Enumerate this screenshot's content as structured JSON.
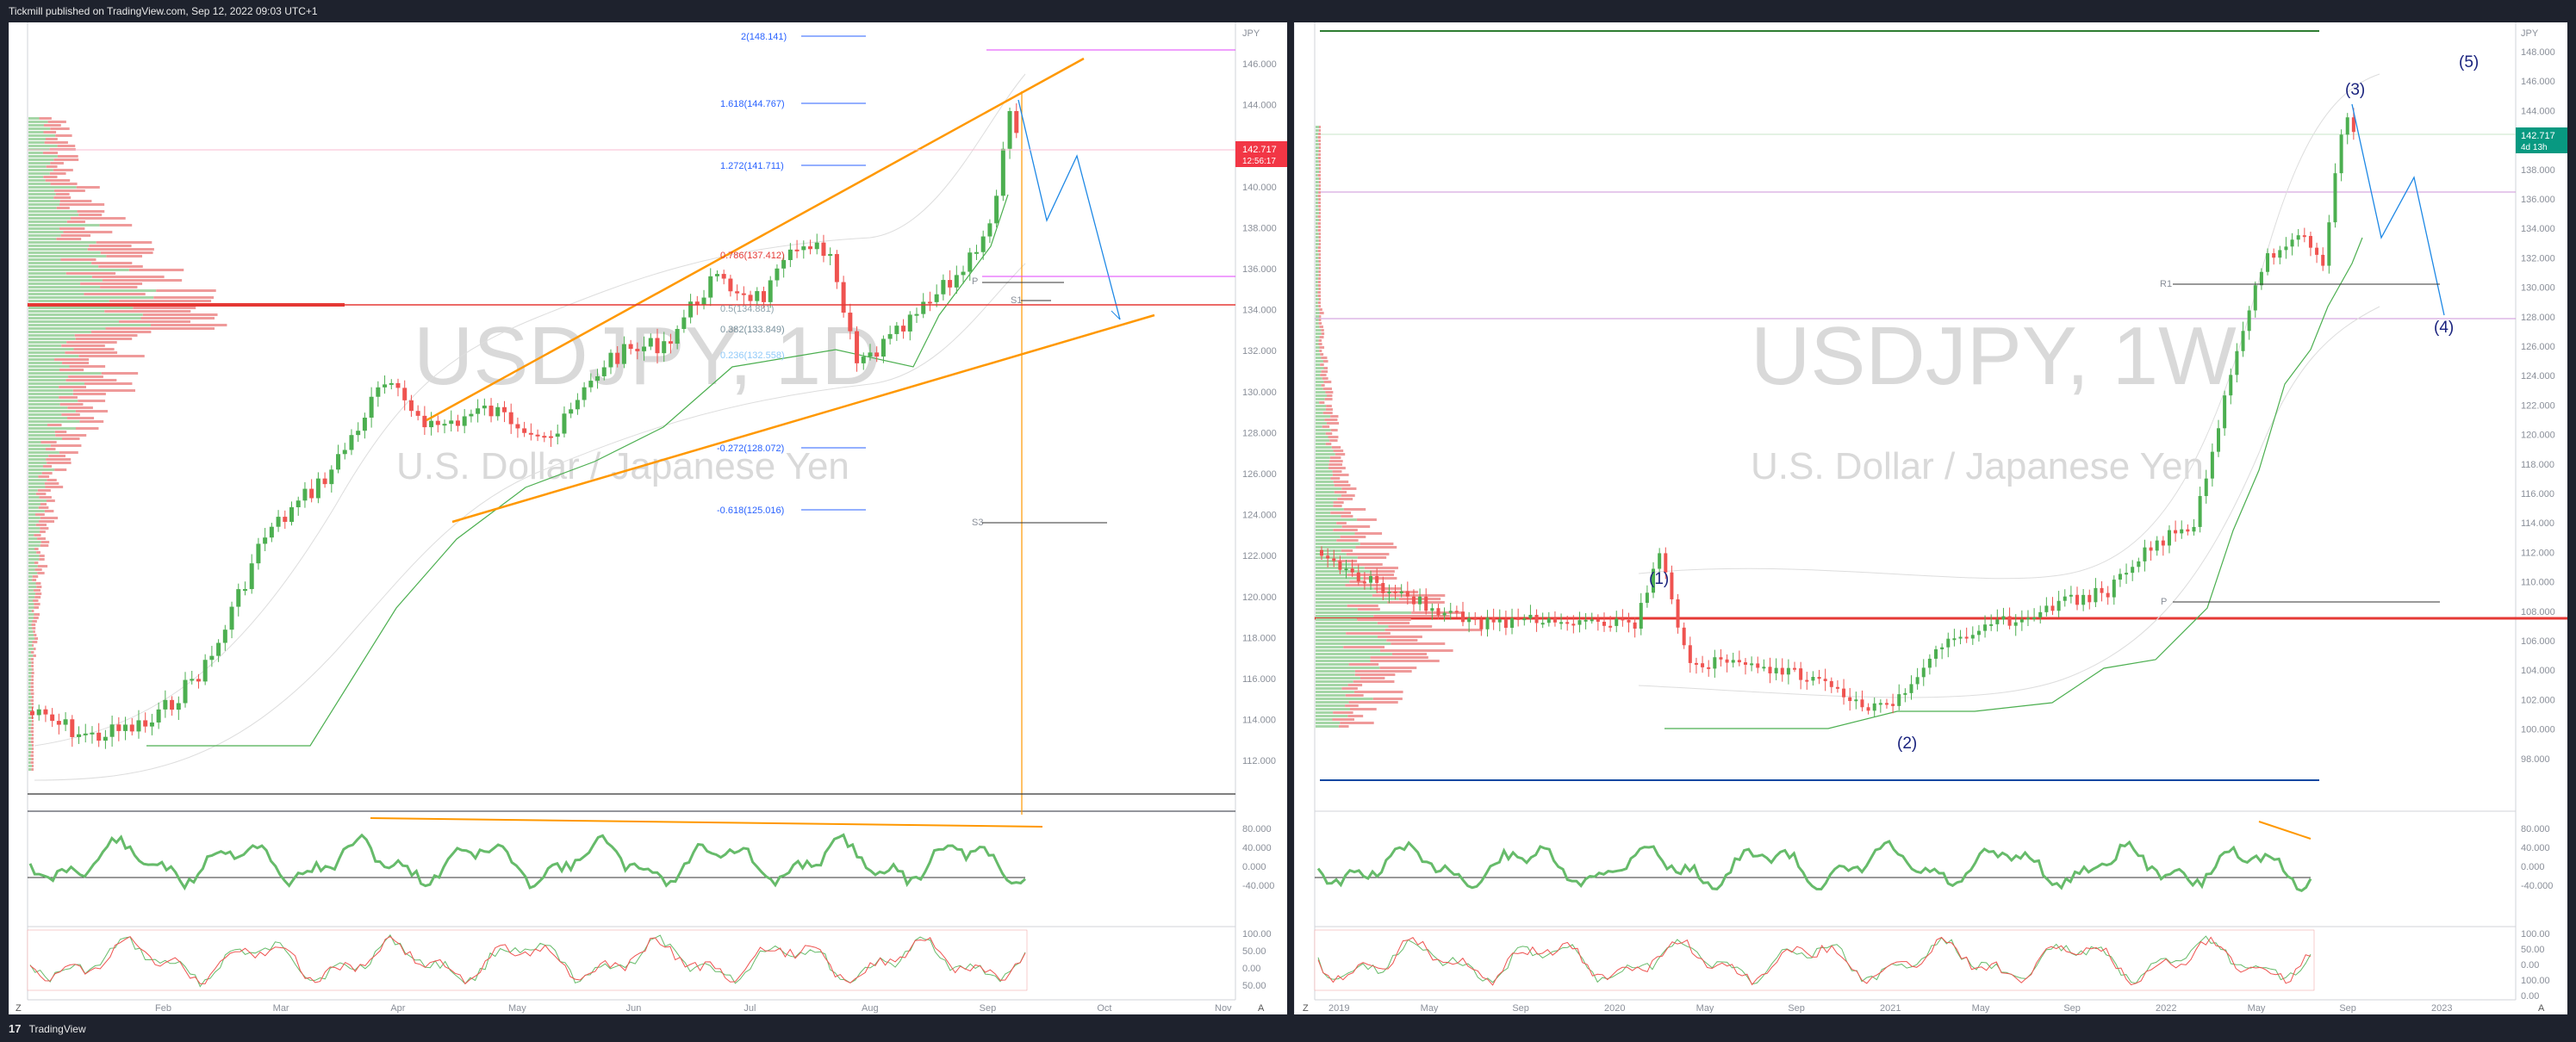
{
  "header": {
    "published": "Tickmill published on TradingView.com, Sep 12, 2022 09:03 UTC+1"
  },
  "footer": {
    "logo": "17",
    "brand": "TradingView"
  },
  "left_chart": {
    "symbol": "USDJPY, 1D",
    "description": "U.S. Dollar / Japanese Yen",
    "currency": "JPY",
    "price_label": "142.717",
    "countdown": "12:56:17",
    "price_ticks": [
      "146.000",
      "144.000",
      "142.000",
      "140.000",
      "138.000",
      "136.000",
      "134.000",
      "132.000",
      "130.000",
      "128.000",
      "126.000",
      "124.000",
      "122.000",
      "120.000",
      "118.000",
      "116.000",
      "114.000",
      "112.000"
    ],
    "time_ticks": [
      "Feb",
      "Mar",
      "Apr",
      "May",
      "Jun",
      "Jul",
      "Aug",
      "Sep",
      "Oct",
      "Nov"
    ],
    "fib_labels": [
      "2(148.141)",
      "1.618(144.767)",
      "1.272(141.711)",
      "0.786(137.412)",
      "0.5(134.881)",
      "0.382(133.849)",
      "0.236(132.558)",
      "-0.272(128.072)",
      "-0.618(125.016)"
    ],
    "pivot_labels": [
      "P",
      "S1",
      "S3"
    ],
    "rsi_ticks": [
      "80.000",
      "40.000",
      "0.000",
      "-40.000"
    ],
    "stoch_ticks": [
      "100.00",
      "50.00",
      "0.00",
      "50.00"
    ],
    "z_button": "Z",
    "a_button": "A"
  },
  "right_chart": {
    "symbol": "USDJPY, 1W",
    "description": "U.S. Dollar / Japanese Yen",
    "currency": "JPY",
    "price_label": "142.717",
    "countdown": "4d 13h",
    "price_ticks": [
      "148.000",
      "146.000",
      "144.000",
      "140.000",
      "138.000",
      "136.000",
      "134.000",
      "132.000",
      "130.000",
      "128.000",
      "126.000",
      "124.000",
      "122.000",
      "120.000",
      "118.000",
      "116.000",
      "114.000",
      "112.000",
      "110.000",
      "108.000",
      "106.000",
      "104.000",
      "102.000",
      "100.000",
      "98.000"
    ],
    "time_ticks": [
      "2019",
      "May",
      "Sep",
      "2020",
      "May",
      "Sep",
      "2021",
      "May",
      "Sep",
      "2022",
      "May",
      "Sep",
      "2023"
    ],
    "wave_labels": [
      "(1)",
      "(2)",
      "(3)",
      "(4)",
      "(5)"
    ],
    "pivot_labels": [
      "R1",
      "P"
    ],
    "rsi_ticks": [
      "80.000",
      "40.000",
      "0.000",
      "-40.000"
    ],
    "stoch_ticks": [
      "100.00",
      "50.00",
      "0.00",
      "100.00",
      "0.00"
    ],
    "z_button": "Z",
    "a_button": "A"
  },
  "colors": {
    "up": "#26a69a",
    "down": "#ef5350",
    "green_line": "#4caf50",
    "orange": "#ff9800",
    "fib_blue": "#2962ff",
    "magenta": "#e040fb",
    "red_level": "#e53935",
    "price_badge_left": "#f23645",
    "price_badge_right": "#089981"
  }
}
